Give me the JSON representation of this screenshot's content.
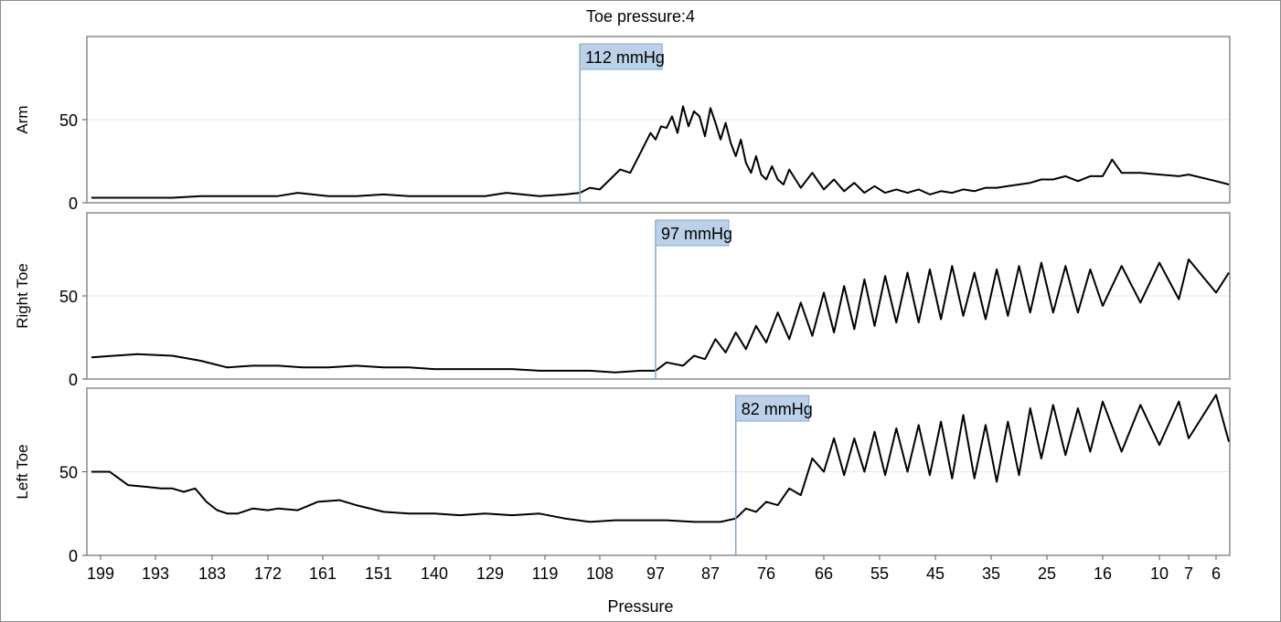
{
  "title": "Toe pressure:4",
  "chart_data": {
    "type": "line",
    "title": "Toe pressure:4",
    "xlabel": "Pressure",
    "x_tick_labels": [
      "199",
      "193",
      "183",
      "172",
      "161",
      "151",
      "140",
      "129",
      "119",
      "108",
      "97",
      "87",
      "76",
      "66",
      "55",
      "45",
      "35",
      "25",
      "16",
      "10",
      "7",
      "6"
    ],
    "x_direction": "decreasing",
    "grid": "horizontal",
    "panels": [
      {
        "ylabel": "Arm",
        "ylim": [
          0,
          100
        ],
        "y_ticks": [
          0,
          50
        ],
        "marker": {
          "x": 112,
          "label": "112 mmHg"
        },
        "series": [
          {
            "x": [
              200,
              195,
              190,
              185,
              180,
              175,
              170,
              166,
              160,
              155,
              150,
              145,
              140,
              135,
              130,
              126,
              120,
              115,
              112,
              110,
              108,
              106,
              104,
              102,
              100,
              98,
              97,
              96,
              95,
              94,
              93,
              92,
              91,
              90,
              89,
              88,
              87,
              86,
              85,
              84,
              83,
              82,
              81,
              80,
              79,
              78,
              77,
              76,
              75,
              74,
              73,
              72,
              70,
              68,
              66,
              64,
              62,
              60,
              58,
              56,
              54,
              52,
              50,
              48,
              46,
              44,
              42,
              40,
              38,
              36,
              34,
              32,
              30,
              28,
              26,
              24,
              22,
              20,
              18,
              16,
              15,
              14,
              12,
              10,
              8,
              7,
              6,
              5
            ],
            "y": [
              3,
              3,
              3,
              4,
              4,
              4,
              4,
              6,
              4,
              4,
              5,
              4,
              4,
              4,
              4,
              6,
              4,
              5,
              6,
              9,
              8,
              14,
              20,
              18,
              30,
              42,
              38,
              46,
              45,
              52,
              42,
              58,
              46,
              55,
              52,
              40,
              57,
              48,
              38,
              48,
              36,
              28,
              38,
              24,
              18,
              28,
              17,
              14,
              22,
              14,
              11,
              20,
              9,
              18,
              8,
              14,
              7,
              12,
              6,
              10,
              6,
              8,
              6,
              8,
              5,
              7,
              6,
              8,
              7,
              9,
              9,
              10,
              11,
              12,
              14,
              14,
              16,
              13,
              16,
              16,
              26,
              18,
              18,
              17,
              16,
              17,
              13,
              11
            ]
          }
        ]
      },
      {
        "ylabel": "Right Toe",
        "ylim": [
          0,
          100
        ],
        "y_ticks": [
          0,
          50
        ],
        "marker": {
          "x": 97,
          "label": "97 mmHg"
        },
        "series": [
          {
            "x": [
              200,
              195,
              190,
              185,
              180,
              175,
              170,
              165,
              160,
              155,
              150,
              145,
              140,
              135,
              130,
              125,
              120,
              115,
              110,
              105,
              100,
              97,
              95,
              92,
              90,
              88,
              86,
              84,
              82,
              80,
              78,
              76,
              74,
              72,
              70,
              68,
              66,
              64,
              62,
              60,
              58,
              56,
              54,
              52,
              50,
              48,
              46,
              44,
              42,
              40,
              38,
              36,
              34,
              32,
              30,
              28,
              26,
              24,
              22,
              20,
              18,
              16,
              14,
              12,
              10,
              8,
              7,
              6,
              5
            ],
            "y": [
              13,
              15,
              14,
              11,
              7,
              8,
              8,
              7,
              7,
              8,
              7,
              7,
              6,
              6,
              6,
              6,
              5,
              5,
              5,
              4,
              5,
              5,
              10,
              8,
              14,
              12,
              24,
              16,
              28,
              18,
              32,
              22,
              40,
              24,
              46,
              26,
              52,
              28,
              56,
              30,
              60,
              32,
              62,
              34,
              64,
              34,
              66,
              36,
              68,
              38,
              64,
              36,
              66,
              38,
              68,
              40,
              70,
              40,
              68,
              40,
              66,
              44,
              68,
              46,
              70,
              48,
              72,
              52,
              64
            ]
          }
        ]
      },
      {
        "ylabel": "Left Toe",
        "ylim": [
          0,
          100
        ],
        "y_ticks": [
          0,
          50
        ],
        "marker": {
          "x": 82,
          "label": "82 mmHg"
        },
        "series": [
          {
            "x": [
              200,
              198,
              196,
              194,
              192,
              190,
              188,
              186,
              184,
              182,
              180,
              178,
              175,
              172,
              170,
              166,
              162,
              158,
              155,
              150,
              145,
              140,
              135,
              130,
              125,
              120,
              115,
              110,
              105,
              100,
              95,
              90,
              85,
              82,
              80,
              78,
              76,
              74,
              72,
              70,
              68,
              66,
              64,
              62,
              60,
              58,
              56,
              54,
              52,
              50,
              48,
              46,
              44,
              42,
              40,
              38,
              36,
              34,
              32,
              30,
              28,
              26,
              24,
              22,
              20,
              18,
              16,
              14,
              12,
              10,
              8,
              7,
              6,
              5
            ],
            "y": [
              50,
              50,
              42,
              41,
              40,
              40,
              38,
              40,
              32,
              27,
              25,
              25,
              28,
              27,
              28,
              27,
              32,
              33,
              30,
              26,
              25,
              25,
              24,
              25,
              24,
              25,
              22,
              20,
              21,
              21,
              21,
              20,
              20,
              22,
              28,
              26,
              32,
              30,
              40,
              36,
              58,
              50,
              70,
              48,
              70,
              50,
              74,
              48,
              76,
              50,
              78,
              48,
              80,
              46,
              84,
              46,
              78,
              44,
              80,
              48,
              88,
              58,
              90,
              60,
              88,
              62,
              92,
              62,
              90,
              66,
              92,
              70,
              96,
              68
            ]
          }
        ]
      }
    ]
  }
}
